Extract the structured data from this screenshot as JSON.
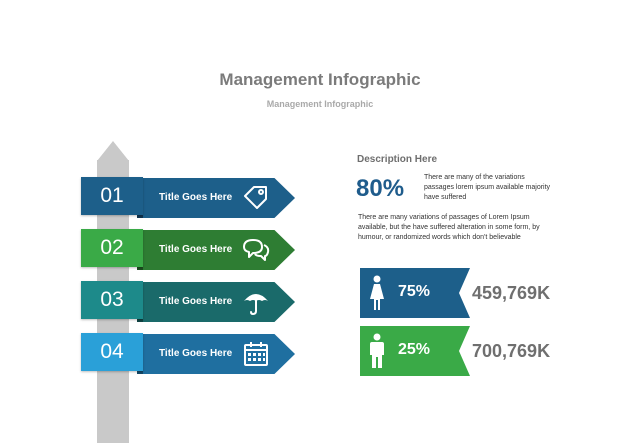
{
  "header": {
    "title": "Management Infographic",
    "subtitle": "Management Infographic"
  },
  "signpost": {
    "items": [
      {
        "number": "01",
        "label": "Title Goes Here",
        "icon": "price-tag-icon",
        "color": "#1d5f8a",
        "dark": "#164a6c"
      },
      {
        "number": "02",
        "label": "Title Goes Here",
        "icon": "chat-bubbles-icon",
        "color": "#3aaa47",
        "dark": "#2e7d33"
      },
      {
        "number": "03",
        "label": "Title Goes Here",
        "icon": "umbrella-icon",
        "color": "#1d8a8a",
        "dark": "#1a6a6a"
      },
      {
        "number": "04",
        "label": "Title Goes Here",
        "icon": "calendar-icon",
        "color": "#2aa0d8",
        "dark": "#1f6fa0"
      }
    ]
  },
  "description": {
    "heading": "Description Here",
    "percent": "80%",
    "side_text": "There are many of the variations passages lorem ipsum available majority have suffered",
    "paragraph": "There are many variations of passages  of Lorem Ipsum available, but the have suffered alteration in some  form, by humour, or randomized words  which  don't believable"
  },
  "stats": [
    {
      "icon": "female-person-icon",
      "percent": "75%",
      "value": "459,769K",
      "color": "#1d5f8a"
    },
    {
      "icon": "male-person-icon",
      "percent": "25%",
      "value": "700,769K",
      "color": "#3aaa47"
    }
  ]
}
